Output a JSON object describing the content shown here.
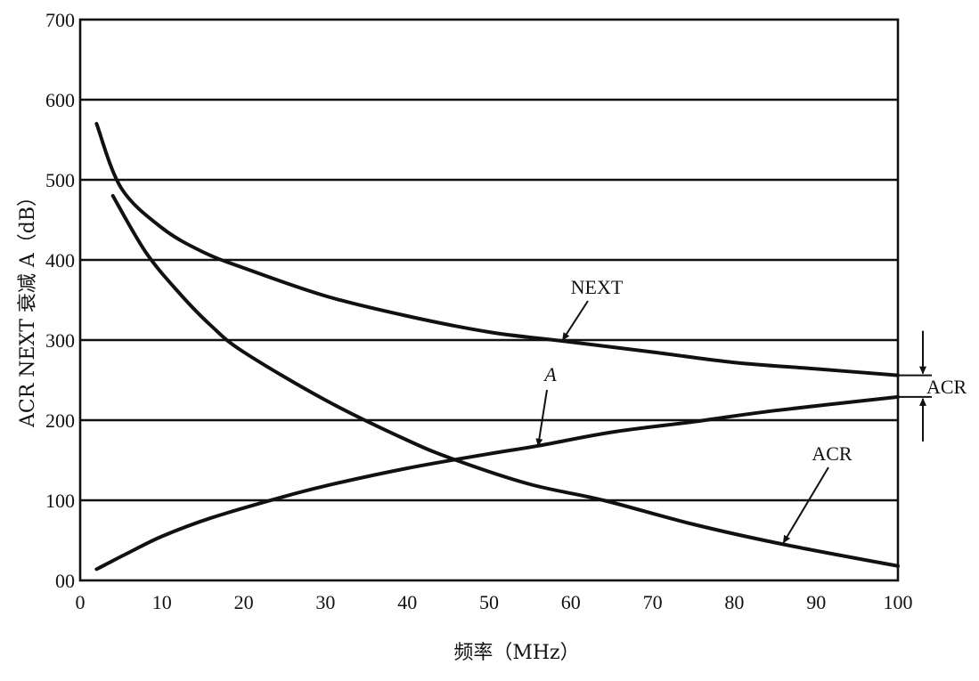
{
  "chart_data": {
    "type": "line",
    "title": "",
    "xlabel": "频率（MHz）",
    "ylabel": "ACR NEXT 衰减 A（dB）",
    "xlim": [
      0,
      100
    ],
    "ylim": [
      0,
      700
    ],
    "grid": "horizontal",
    "x_ticks": [
      "0",
      "10",
      "20",
      "30",
      "40",
      "50",
      "60",
      "70",
      "80",
      "90",
      "100"
    ],
    "y_ticks": [
      "00",
      "100",
      "200",
      "300",
      "400",
      "500",
      "600",
      "700"
    ],
    "series": [
      {
        "name": "NEXT",
        "x": [
          2,
          5,
          10,
          15,
          20,
          30,
          40,
          50,
          58,
          70,
          80,
          90,
          100
        ],
        "y": [
          570,
          490,
          440,
          410,
          390,
          355,
          330,
          310,
          300,
          285,
          272,
          264,
          256
        ]
      },
      {
        "name": "ACR",
        "x": [
          4,
          8,
          12,
          16,
          20,
          30,
          40,
          46,
          55,
          64,
          75,
          86,
          100
        ],
        "y": [
          480,
          410,
          360,
          318,
          285,
          225,
          175,
          150,
          120,
          100,
          70,
          45,
          18
        ]
      },
      {
        "name": "A",
        "x": [
          2,
          6,
          10,
          16,
          24,
          30,
          40,
          50,
          56,
          65,
          75,
          85,
          100
        ],
        "y": [
          14,
          35,
          55,
          78,
          102,
          118,
          140,
          158,
          168,
          185,
          198,
          212,
          229
        ]
      }
    ],
    "annotations": [
      {
        "text": "NEXT",
        "target_x": 59,
        "target_y": 300
      },
      {
        "text": "A",
        "target_x": 56,
        "target_y": 168
      },
      {
        "text": "ACR",
        "target_x": 86,
        "target_y": 47
      },
      {
        "text": "ACR",
        "target_x": 100,
        "target_y": 242
      }
    ]
  }
}
